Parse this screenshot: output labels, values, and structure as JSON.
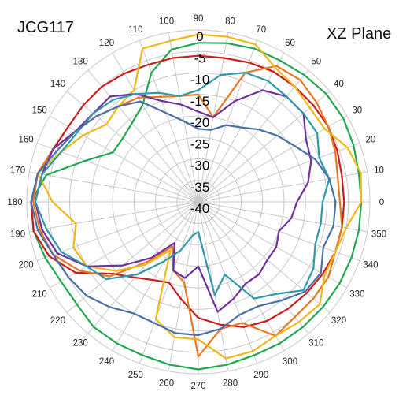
{
  "chart_data": {
    "type": "radar",
    "title": "JCG117",
    "subtitle": "XZ  Plane",
    "angle_labels": [
      0,
      10,
      20,
      30,
      40,
      50,
      60,
      70,
      80,
      90,
      100,
      110,
      120,
      130,
      140,
      150,
      160,
      170,
      180,
      190,
      200,
      210,
      220,
      230,
      240,
      250,
      260,
      270,
      280,
      290,
      300,
      310,
      320,
      330,
      340,
      350
    ],
    "radial_ticks": [
      0,
      -5,
      -10,
      -15,
      -20,
      -25,
      -30,
      -35,
      -40
    ],
    "rlim": [
      -40,
      0
    ],
    "grid": true,
    "series": [
      {
        "color": "#1fa84f",
        "values": [
          -2,
          -2,
          -1.5,
          -1,
          -1,
          -1.5,
          -2,
          -2,
          -2.5,
          -3,
          -4,
          -8,
          -14,
          -16,
          -17,
          -17,
          -12,
          -4,
          -1,
          -1,
          -2,
          -3,
          -3,
          -2,
          -2,
          -2,
          -1.5,
          -1,
          -1.5,
          -2,
          -2,
          -2,
          -2,
          -2,
          -2,
          -2
        ]
      },
      {
        "color": "#c81e1e",
        "values": [
          -6,
          -6,
          -5.5,
          -5,
          -5,
          -5,
          -5,
          -5.5,
          -6,
          -6,
          -6,
          -6,
          -5.5,
          -5,
          -5,
          -5,
          -4,
          -2,
          -1,
          -1,
          -3,
          -7,
          -14,
          -17,
          -19,
          -20,
          -17,
          -13,
          -11,
          -9,
          -8,
          -7.5,
          -7,
          -6.5,
          -6,
          -6
        ]
      },
      {
        "color": "#e87722",
        "values": [
          -7,
          -7,
          -6,
          -5,
          -4,
          -3,
          -3.5,
          -8,
          -20,
          -15,
          -15,
          -14,
          -12,
          -11,
          -9,
          -7,
          -4,
          -2,
          -1.5,
          -2.5,
          -4,
          -8,
          -13,
          -22,
          -28,
          -23,
          -21,
          -4,
          -10,
          -10,
          -4,
          -5,
          -5,
          -5,
          -6,
          -6
        ]
      },
      {
        "color": "#f0b71a",
        "values": [
          -2,
          -1.5,
          -3,
          -6,
          -6,
          -5,
          -4,
          -1,
          -1,
          -1,
          -2,
          -2,
          -10,
          -11,
          -12,
          -9,
          -6,
          -2,
          -6,
          -11,
          -9,
          -10,
          -15,
          -21,
          -27,
          -11,
          -8,
          -8,
          -3,
          -3,
          -4,
          -3.5,
          -3,
          -6,
          -6,
          -5
        ]
      },
      {
        "color": "#7030a0",
        "values": [
          -17,
          -14,
          -12,
          -11,
          -8,
          -8,
          -10,
          -15,
          -20,
          -19,
          -17,
          -15,
          -11,
          -8,
          -8,
          -7,
          -4,
          -3,
          -2,
          -3,
          -5,
          -10,
          -17,
          -23,
          -29,
          -23,
          -22,
          -25,
          -14,
          -16,
          -18,
          -18,
          -19,
          -19,
          -20,
          -18
        ]
      },
      {
        "color": "#2e9aa8",
        "values": [
          -11,
          -9,
          -10,
          -8,
          -8,
          -8,
          -7.5,
          -8,
          -10,
          -14,
          -15,
          -13,
          -11,
          -9,
          -8,
          -7.5,
          -6,
          -3,
          -2,
          -4,
          -6,
          -10,
          -12,
          -18,
          -24,
          -28,
          -32,
          -33,
          -18,
          -22,
          -14,
          -12,
          -8,
          -9,
          -11,
          -11
        ]
      },
      {
        "color": "#4a6fa8",
        "values": [
          -8,
          -9,
          -11,
          -14,
          -16,
          -18,
          -20,
          -21,
          -23,
          -23,
          -21,
          -18,
          -13,
          -11,
          -9,
          -7,
          -5,
          -2,
          -1,
          -2,
          -4,
          -5,
          -6,
          -8,
          -10,
          -10,
          -9,
          -9,
          -10,
          -12,
          -12,
          -10,
          -7.5,
          -7,
          -9,
          -8
        ]
      }
    ]
  }
}
